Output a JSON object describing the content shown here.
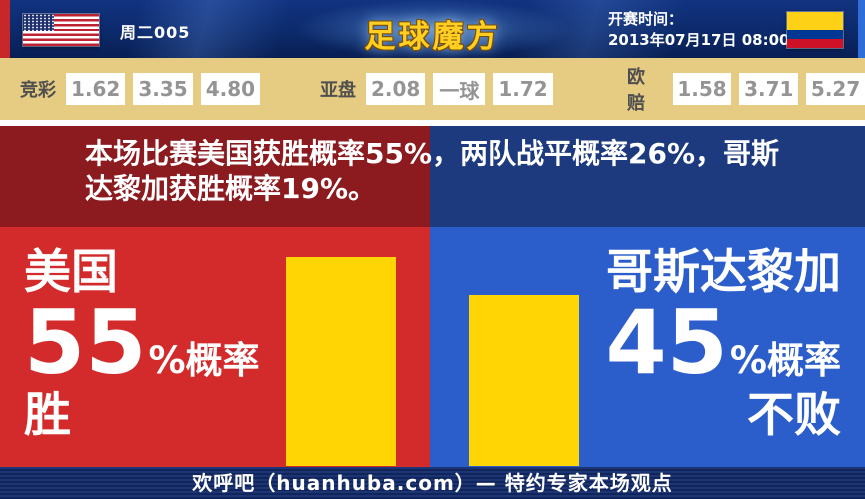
{
  "header": {
    "match_label": "周二005",
    "logo_text": "足球魔方",
    "kickoff_label": "开赛时间：",
    "kickoff_time": "2013年07月17日 08:00"
  },
  "odds": {
    "groups": [
      {
        "label": "竞彩",
        "values": [
          "1.62",
          "3.35",
          "4.80"
        ]
      },
      {
        "label": "亚盘",
        "values": [
          "2.08",
          "一球",
          "1.72"
        ]
      },
      {
        "label": "欧赔",
        "values": [
          "1.58",
          "3.71",
          "5.27"
        ]
      }
    ]
  },
  "banner": {
    "summary": "本场比赛美国获胜概率55%，两队战平概率26%，哥斯达黎加获胜概率19%。"
  },
  "panels": {
    "left": {
      "team": "美国",
      "value": "55",
      "suffix": "%概率",
      "outcome": "胜"
    },
    "right": {
      "team": "哥斯达黎加",
      "value": "45",
      "suffix": "%概率",
      "outcome": "不败"
    }
  },
  "chart_data": {
    "type": "bar",
    "categories": [
      "美国 胜",
      "哥斯达黎加 不败"
    ],
    "values": [
      55,
      45
    ],
    "unit": "%",
    "bar_color": "#ffd503"
  },
  "footer": {
    "text": "欢呼吧（huanhuba.com）— 特约专家本场观点"
  },
  "colors": {
    "topbar_navy": "#0c2a6b",
    "odds_tan": "#e6cc82",
    "banner_dark_red": "#8c1b20",
    "banner_dark_navy": "#1d3a7e",
    "main_red": "#d32b2b",
    "main_blue": "#2c5ecb",
    "bar_yellow": "#ffd503",
    "footer_navy": "#12255a"
  }
}
